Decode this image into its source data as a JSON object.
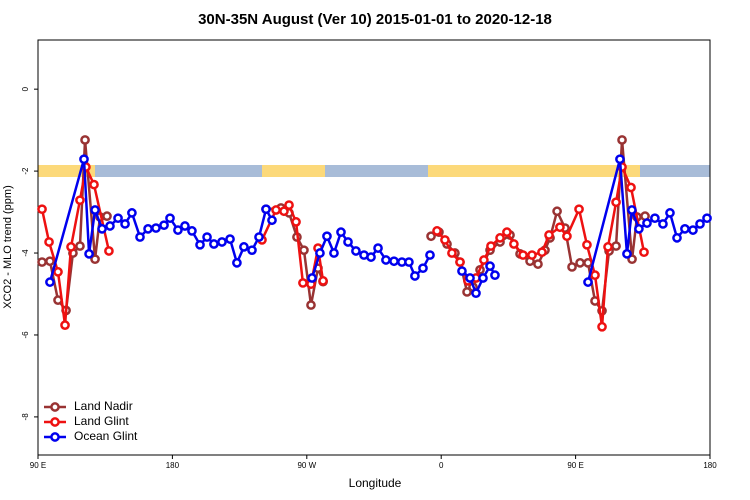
{
  "chart_data": {
    "type": "line",
    "title": "30N-35N August (Ver 10)   2015-01-01 to 2020-12-18",
    "xlabel": "Longitude",
    "ylabel": "XCO2 - MLO trend (ppm)",
    "xlim": [
      90,
      540
    ],
    "ylim": [
      -8.93,
      1.2
    ],
    "xticks": [
      {
        "value": 90,
        "label": "90 E"
      },
      180,
      {
        "value": 270,
        "label": "90 W"
      },
      {
        "value": 360,
        "label": "0"
      },
      {
        "value": 450,
        "label": "90 E"
      },
      {
        "value": 540,
        "label": "180"
      }
    ],
    "yticks": [
      0,
      -2,
      -4,
      -6,
      -8
    ],
    "legend": "bottomleft",
    "series": [
      {
        "name": "Land Nadir",
        "color": "#993333",
        "x": [
          92.7,
          98.0,
          103.4,
          108.8,
          113.4,
          118.1,
          121.5,
          128.2,
          131.5,
          136.2,
          200,
          242.7,
          252.7,
          258.1,
          263.4,
          268.1,
          272.8,
          277.5,
          280.9,
          320,
          353.2,
          358.5,
          363.9,
          369.2,
          372.6,
          377.3,
          381.3,
          386.0,
          392.7,
          399.4,
          406.1,
          412.8,
          419.5,
          424.8,
          429.5,
          432.9,
          437.6,
          442.9,
          447.6,
          453.0,
          458.3,
          463.0,
          467.7,
          472.4,
          477.1,
          481.1,
          487.8,
          491.1,
          496.5
        ],
        "values": [
          -4.22,
          -4.2,
          -5.15,
          -5.4,
          -4.0,
          -3.83,
          -1.24,
          -4.15,
          -3.12,
          -3.1,
          null,
          -2.93,
          -2.9,
          -3.02,
          -3.61,
          -3.93,
          -5.27,
          -4.37,
          -4.7,
          null,
          -3.59,
          -3.49,
          -3.78,
          -4.0,
          -4.22,
          -4.95,
          -4.83,
          -4.41,
          -3.93,
          -3.73,
          -3.56,
          -4.02,
          -4.2,
          -4.27,
          -3.93,
          -3.63,
          -2.98,
          -3.39,
          -4.34,
          -4.24,
          -4.24,
          -5.17,
          -5.41,
          -3.95,
          -3.83,
          -1.24,
          -4.15,
          -3.12,
          -3.1
        ]
      },
      {
        "name": "Land Glint",
        "color": "#ee1111",
        "x": [
          92.7,
          97.4,
          103.4,
          108.1,
          112.1,
          118.1,
          122.1,
          127.5,
          137.5,
          200,
          240.0,
          249.4,
          254.7,
          258.1,
          262.8,
          267.4,
          272.8,
          277.5,
          280.9,
          320,
          357.2,
          362.5,
          367.2,
          372.6,
          377.9,
          383.3,
          388.6,
          393.3,
          399.4,
          404.0,
          408.7,
          414.8,
          420.8,
          427.5,
          432.2,
          439.5,
          444.2,
          452.3,
          457.6,
          463.0,
          467.7,
          471.7,
          477.1,
          481.1,
          487.1,
          495.8
        ],
        "values": [
          -2.93,
          -3.73,
          -4.46,
          -5.76,
          -3.85,
          -2.71,
          -1.9,
          -2.33,
          -3.95,
          null,
          -3.68,
          -2.95,
          -2.98,
          -2.83,
          -3.24,
          -4.73,
          -4.76,
          -3.88,
          -4.68,
          null,
          -3.46,
          -3.68,
          -4.0,
          -4.22,
          -4.68,
          -4.61,
          -4.17,
          -3.83,
          -3.63,
          -3.49,
          -3.78,
          -4.05,
          -4.05,
          -3.98,
          -3.56,
          -3.37,
          -3.59,
          -2.93,
          -3.8,
          -4.54,
          -5.8,
          -3.85,
          -2.76,
          -1.9,
          -2.4,
          -3.98
        ]
      },
      {
        "name": "Ocean Glint",
        "color": "#0000ee",
        "x": [
          98.0,
          120.8,
          124.2,
          128.2,
          132.9,
          138.2,
          143.6,
          148.3,
          152.9,
          158.3,
          163.7,
          169.0,
          174.4,
          178.4,
          183.7,
          188.4,
          193.1,
          198.5,
          203.2,
          207.8,
          213.2,
          218.6,
          223.2,
          227.9,
          233.3,
          238.0,
          242.7,
          246.7,
          260,
          273.5,
          278.8,
          283.5,
          288.2,
          292.9,
          297.6,
          302.9,
          308.3,
          313.0,
          317.7,
          323.0,
          328.4,
          333.7,
          338.4,
          342.4,
          347.8,
          352.5,
          363,
          373.9,
          379.3,
          383.3,
          388.0,
          392.7,
          396.0,
          430,
          458.3,
          479.7,
          484.4,
          487.7,
          492.4,
          497.8,
          503.1,
          508.5,
          513.2,
          517.9,
          523.2,
          528.6,
          533.3,
          538.0
        ],
        "values": [
          -4.71,
          -1.71,
          -4.02,
          -2.95,
          -3.41,
          -3.34,
          -3.15,
          -3.29,
          -3.02,
          -3.61,
          -3.41,
          -3.39,
          -3.32,
          -3.15,
          -3.44,
          -3.34,
          -3.46,
          -3.8,
          -3.61,
          -3.78,
          -3.73,
          -3.66,
          -4.24,
          -3.85,
          -3.93,
          -3.61,
          -2.93,
          -3.2,
          null,
          -4.61,
          -4.0,
          -3.59,
          -4.0,
          -3.49,
          -3.73,
          -3.95,
          -4.05,
          -4.1,
          -3.88,
          -4.17,
          -4.2,
          -4.22,
          -4.22,
          -4.56,
          -4.37,
          -4.05,
          null,
          -4.44,
          -4.61,
          -4.98,
          -4.61,
          -4.32,
          -4.54,
          null,
          -4.71,
          -1.71,
          -4.02,
          -2.95,
          -3.41,
          -3.27,
          -3.15,
          -3.29,
          -3.02,
          -3.63,
          -3.41,
          -3.44,
          -3.29,
          -3.15
        ]
      }
    ]
  }
}
